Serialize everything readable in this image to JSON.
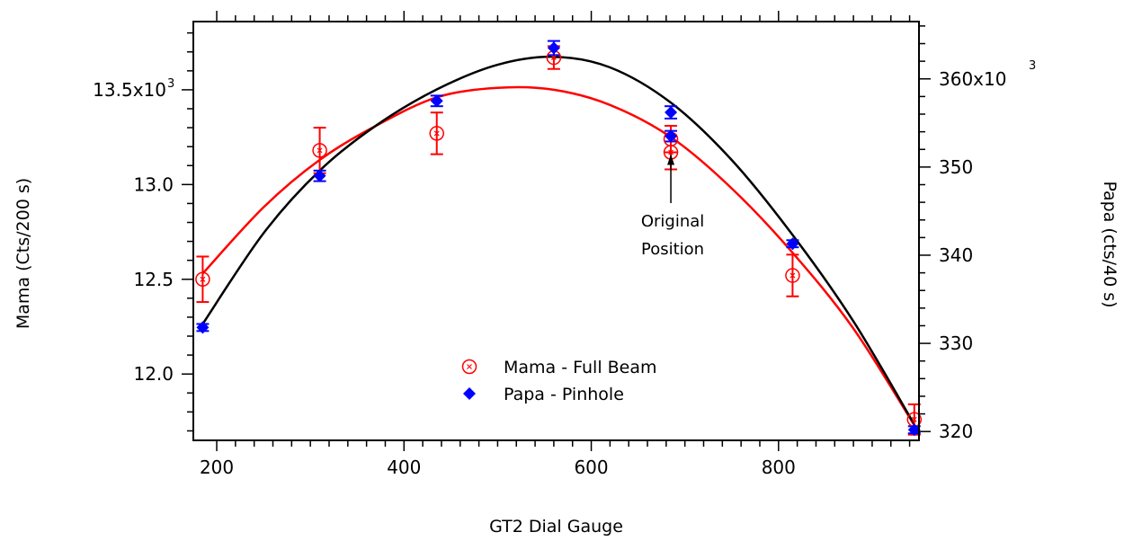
{
  "chart_data": {
    "type": "scatter",
    "title": "",
    "xlabel": "GT2 Dial Gauge",
    "ylabel_left": "Mama  (Cts/200 s)",
    "ylabel_right": "Papa (cts/40 s)",
    "xlim": [
      175,
      950
    ],
    "ylim_left": [
      11.65,
      13.86
    ],
    "ylim_right": [
      319.0,
      366.5
    ],
    "x_ticks": [
      200,
      400,
      600,
      800
    ],
    "x_tick_labels": [
      "200",
      "400",
      "600",
      "800"
    ],
    "y_left_ticks": [
      12.0,
      12.5,
      13.0,
      13.5
    ],
    "y_left_tick_labels": [
      "12.0",
      "12.5",
      "13.0",
      "13.5x10"
    ],
    "y_left_top_exponent": "3",
    "y_right_ticks": [
      320,
      330,
      340,
      350,
      360
    ],
    "y_right_tick_labels": [
      "320",
      "330",
      "340",
      "350",
      "360x10"
    ],
    "y_right_top_exponent": "3",
    "grid": false,
    "legend_position": "bottom-center",
    "series": [
      {
        "name": "Mama - Full Beam",
        "axis": "left",
        "color": "#ff0000",
        "marker": "circle-x",
        "x": [
          185,
          310,
          435,
          560,
          685,
          685,
          815,
          945
        ],
        "y": [
          12.5,
          13.18,
          13.27,
          13.67,
          13.17,
          13.24,
          12.52,
          11.76
        ],
        "err": [
          0.12,
          0.12,
          0.11,
          0.06,
          0.09,
          0.07,
          0.11,
          0.08
        ]
      },
      {
        "name": "Papa - Pinhole",
        "axis": "right",
        "color": "#0000ff",
        "marker": "diamond",
        "x": [
          185,
          310,
          435,
          560,
          685,
          685,
          815,
          945
        ],
        "y": [
          331.8,
          349.0,
          357.5,
          363.5,
          356.2,
          353.5,
          341.3,
          320.2
        ],
        "err": [
          0.4,
          0.6,
          0.6,
          0.8,
          0.7,
          0.6,
          0.4,
          0.4
        ]
      }
    ],
    "fits": [
      {
        "series": "Mama - Full Beam",
        "axis": "left",
        "color": "#ff0000",
        "x": [
          185,
          250,
          310,
          370,
          435,
          500,
          560,
          620,
          685,
          750,
          815,
          880,
          945
        ],
        "y": [
          12.53,
          12.88,
          13.13,
          13.31,
          13.46,
          13.51,
          13.5,
          13.42,
          13.25,
          12.98,
          12.64,
          12.24,
          11.73
        ]
      },
      {
        "series": "Papa - Pinhole",
        "axis": "right",
        "color": "#000000",
        "x": [
          185,
          250,
          310,
          370,
          435,
          500,
          560,
          620,
          685,
          750,
          815,
          880,
          945
        ],
        "y": [
          332.2,
          342.5,
          349.6,
          354.7,
          358.8,
          361.6,
          362.5,
          361.3,
          357.3,
          350.8,
          342.3,
          332.5,
          320.8
        ]
      }
    ],
    "annotations": [
      {
        "text_lines": [
          "Original",
          "Position"
        ],
        "arrow_to_x": 685,
        "arrow_to_y_left": 13.17
      }
    ]
  }
}
